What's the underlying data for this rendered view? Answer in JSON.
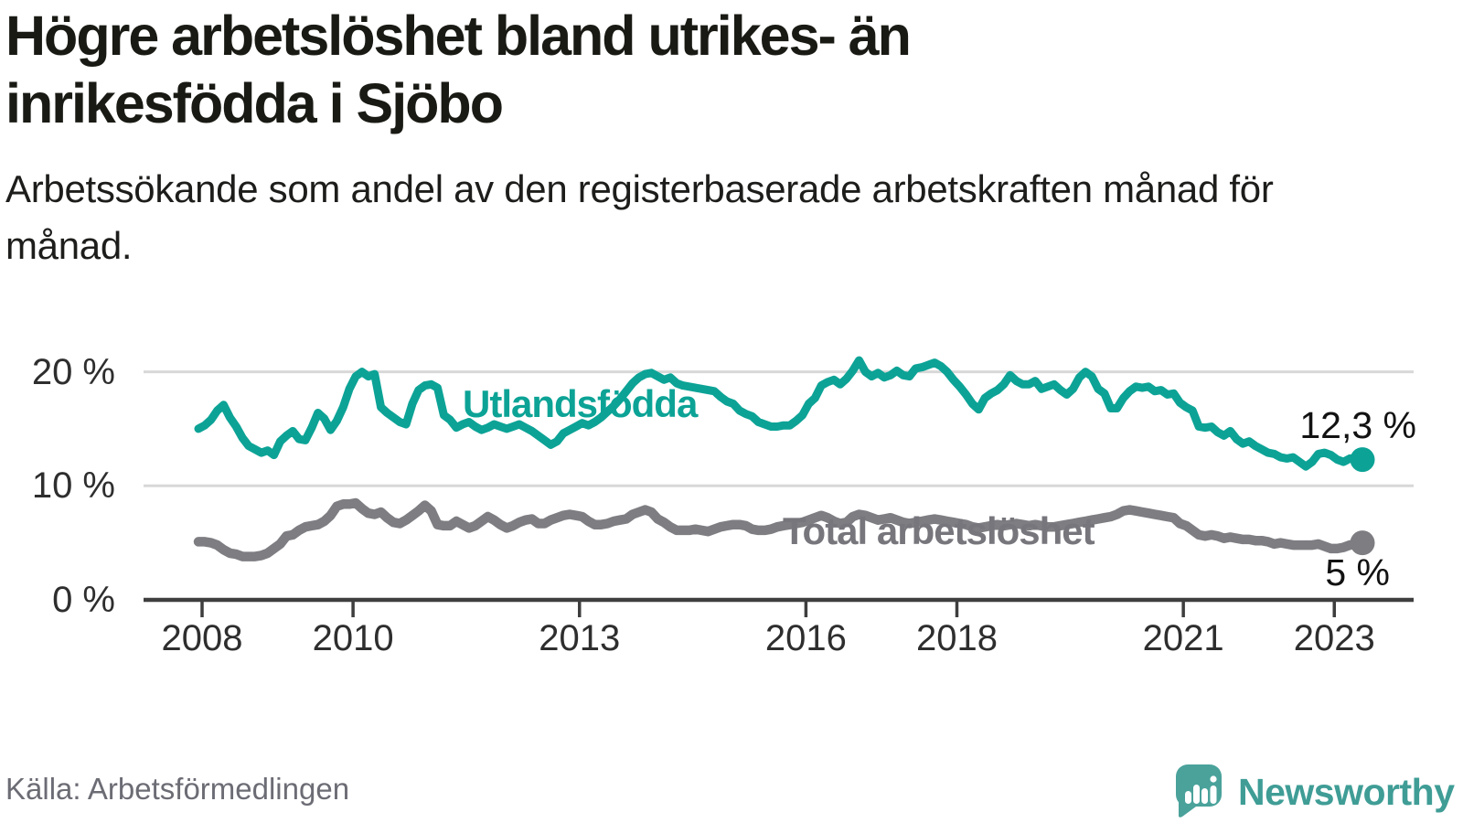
{
  "page": {
    "title": "Högre arbetslöshet bland utrikes- än inrikesfödda i Sjöbo",
    "subtitle": "Arbetssökande som andel av den registerbaserade arbetskraften månad för månad.",
    "source": "Källa: Arbetsförmedlingen",
    "logo_text": "Newsworthy"
  },
  "colors": {
    "series_foreign": "#0ca396",
    "series_total": "#7d7d82",
    "series_total_label": "#76767c",
    "grid": "#d8d8d8",
    "axis": "#3e3e3e",
    "logo_teal": "#4aa29b",
    "logo_text_teal": "#3f9d96"
  },
  "chart_data": {
    "type": "line",
    "title": "Högre arbetslöshet bland utrikes- än inrikesfödda i Sjöbo",
    "subtitle": "Arbetssökande som andel av den registerbaserade arbetskraften månad för månad.",
    "x_unit": "monthly",
    "x_start": "2008-01",
    "x_end": "2023-06",
    "ylim": [
      0,
      21.5
    ],
    "grid": "horizontal",
    "legend": "inline-labels",
    "y_ticks": [
      {
        "value": 0,
        "label": "0 %"
      },
      {
        "value": 10,
        "label": "10 %"
      },
      {
        "value": 20,
        "label": "20 %"
      }
    ],
    "x_ticks": [
      {
        "year": 2008,
        "label": "2008"
      },
      {
        "year": 2010,
        "label": "2010"
      },
      {
        "year": 2013,
        "label": "2013"
      },
      {
        "year": 2016,
        "label": "2016"
      },
      {
        "year": 2018,
        "label": "2018"
      },
      {
        "year": 2021,
        "label": "2021"
      },
      {
        "year": 2023,
        "label": "2023"
      }
    ],
    "series": [
      {
        "name": "Utlandsfödda",
        "color": "#0ca396",
        "end_label": "12,3 %",
        "end_value": 12.3,
        "values": [
          15.0,
          15.3,
          15.8,
          16.6,
          17.1,
          16.0,
          15.2,
          14.2,
          13.5,
          13.2,
          12.9,
          13.1,
          12.7,
          13.9,
          14.4,
          14.8,
          14.1,
          14.0,
          15.1,
          16.4,
          15.9,
          14.9,
          15.7,
          16.9,
          18.5,
          19.6,
          20.0,
          19.6,
          19.8,
          16.9,
          16.4,
          16.0,
          15.6,
          15.4,
          17.2,
          18.4,
          18.8,
          18.9,
          18.6,
          16.2,
          15.8,
          15.1,
          15.4,
          15.6,
          15.2,
          14.9,
          15.1,
          15.4,
          15.2,
          15.0,
          15.2,
          15.4,
          15.1,
          14.8,
          14.4,
          14.0,
          13.6,
          13.9,
          14.6,
          14.9,
          15.2,
          15.5,
          15.3,
          15.6,
          16.0,
          16.5,
          17.0,
          17.6,
          18.3,
          19.0,
          19.5,
          19.8,
          19.9,
          19.6,
          19.3,
          19.5,
          19.0,
          18.8,
          18.7,
          18.6,
          18.5,
          18.4,
          18.3,
          17.8,
          17.4,
          17.2,
          16.6,
          16.3,
          16.1,
          15.6,
          15.4,
          15.2,
          15.2,
          15.3,
          15.3,
          15.7,
          16.2,
          17.2,
          17.7,
          18.8,
          19.1,
          19.3,
          18.9,
          19.4,
          20.1,
          21.0,
          20.0,
          19.6,
          19.9,
          19.5,
          19.7,
          20.1,
          19.7,
          19.6,
          20.3,
          20.4,
          20.6,
          20.8,
          20.5,
          20.0,
          19.3,
          18.7,
          18.0,
          17.2,
          16.7,
          17.7,
          18.1,
          18.4,
          18.9,
          19.7,
          19.2,
          18.9,
          18.9,
          19.2,
          18.5,
          18.7,
          18.9,
          18.4,
          18.0,
          18.5,
          19.5,
          20.0,
          19.6,
          18.5,
          18.1,
          16.8,
          16.8,
          17.7,
          18.3,
          18.7,
          18.6,
          18.7,
          18.3,
          18.4,
          18.0,
          18.1,
          17.3,
          16.9,
          16.6,
          15.2,
          15.1,
          15.2,
          14.7,
          14.4,
          14.8,
          14.1,
          13.7,
          13.9,
          13.5,
          13.2,
          12.9,
          12.8,
          12.5,
          12.4,
          12.5,
          12.1,
          11.7,
          12.1,
          12.8,
          12.9,
          12.7,
          12.3,
          12.1,
          12.4,
          12.4,
          12.3
        ]
      },
      {
        "name": "Total arbetslöshet",
        "color": "#7d7d82",
        "end_label": "5 %",
        "end_value": 5.0,
        "values": [
          5.1,
          5.1,
          5.0,
          4.8,
          4.4,
          4.1,
          4.0,
          3.8,
          3.8,
          3.8,
          3.9,
          4.1,
          4.5,
          4.9,
          5.6,
          5.7,
          6.1,
          6.4,
          6.5,
          6.6,
          6.9,
          7.4,
          8.2,
          8.4,
          8.4,
          8.5,
          8.0,
          7.6,
          7.5,
          7.7,
          7.2,
          6.8,
          6.7,
          7.0,
          7.4,
          7.8,
          8.3,
          7.8,
          6.6,
          6.5,
          6.5,
          6.9,
          6.6,
          6.3,
          6.5,
          6.9,
          7.3,
          7.0,
          6.6,
          6.3,
          6.5,
          6.8,
          7.0,
          7.1,
          6.7,
          6.7,
          7.0,
          7.2,
          7.4,
          7.5,
          7.4,
          7.3,
          6.9,
          6.6,
          6.6,
          6.7,
          6.9,
          7.0,
          7.1,
          7.5,
          7.7,
          7.9,
          7.7,
          7.1,
          6.8,
          6.4,
          6.1,
          6.1,
          6.1,
          6.2,
          6.1,
          6.0,
          6.2,
          6.4,
          6.5,
          6.6,
          6.6,
          6.5,
          6.2,
          6.1,
          6.1,
          6.2,
          6.4,
          6.5,
          6.6,
          6.7,
          6.8,
          7.0,
          7.2,
          7.4,
          7.2,
          6.9,
          6.7,
          6.8,
          7.3,
          7.5,
          7.4,
          7.2,
          7.0,
          7.1,
          7.2,
          7.0,
          6.8,
          6.7,
          6.8,
          6.9,
          7.0,
          7.1,
          7.0,
          6.9,
          6.8,
          6.7,
          6.6,
          6.4,
          6.3,
          6.4,
          6.5,
          6.6,
          6.5,
          6.6,
          6.7,
          6.6,
          6.5,
          6.6,
          6.5,
          6.4,
          6.4,
          6.5,
          6.6,
          6.7,
          6.8,
          6.9,
          7.0,
          7.1,
          7.2,
          7.3,
          7.5,
          7.8,
          7.9,
          7.8,
          7.7,
          7.6,
          7.5,
          7.4,
          7.3,
          7.2,
          6.7,
          6.5,
          6.1,
          5.7,
          5.6,
          5.7,
          5.6,
          5.4,
          5.5,
          5.4,
          5.3,
          5.3,
          5.2,
          5.2,
          5.1,
          4.9,
          5.0,
          4.9,
          4.8,
          4.8,
          4.8,
          4.8,
          4.9,
          4.7,
          4.5,
          4.5,
          4.6,
          4.8,
          4.9,
          5.0
        ]
      }
    ]
  }
}
